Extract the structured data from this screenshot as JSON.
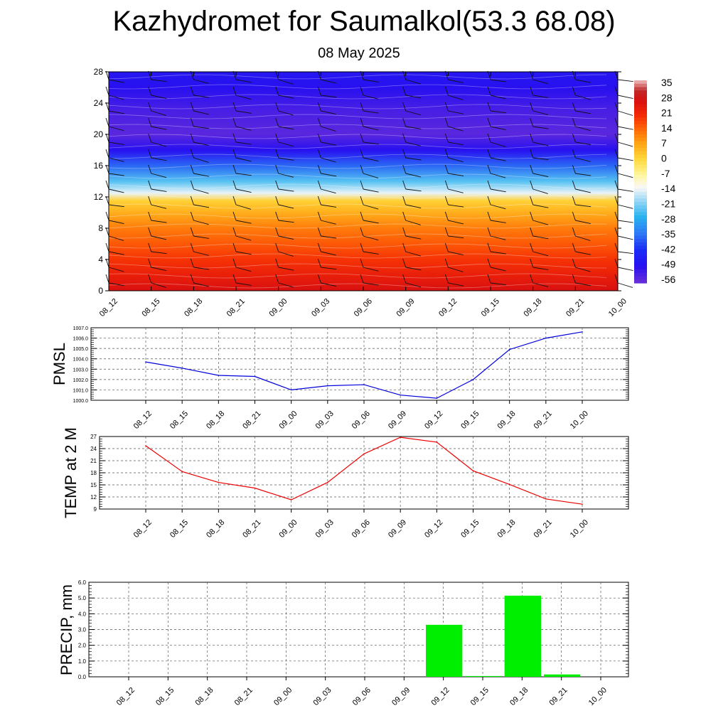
{
  "title": "Kazhydromet for Saumalkol(53.3 68.08)",
  "date": "08 May 2025",
  "time_labels": [
    "08_12",
    "08_15",
    "08_18",
    "08_21",
    "09_00",
    "09_03",
    "09_06",
    "09_09",
    "09_12",
    "09_15",
    "09_18",
    "09_21",
    "10_00"
  ],
  "colors": {
    "pmsl_line": "#0000dd",
    "temp_line": "#ee0000",
    "precip_bar": "#00ee00",
    "grid": "#555555"
  },
  "chart_data": [
    {
      "type": "heatmap",
      "name": "vertical-temperature-wind-section",
      "y_ticks": [
        0,
        4,
        8,
        12,
        16,
        20,
        24,
        28
      ],
      "ylim": [
        0,
        28
      ],
      "x": [
        "08_12",
        "08_15",
        "08_18",
        "08_21",
        "09_00",
        "09_03",
        "09_06",
        "09_09",
        "09_12",
        "09_15",
        "09_18",
        "09_21",
        "10_00"
      ],
      "colorbar_labels": [
        "35",
        "28",
        "21",
        "14",
        "7",
        "0",
        "-7",
        "-14",
        "-21",
        "-28",
        "-35",
        "-42",
        "-49",
        "-56"
      ],
      "colorbar_range": [
        -60,
        38
      ],
      "profile": [
        {
          "level": 0,
          "value": 28
        },
        {
          "level": 2,
          "value": 24
        },
        {
          "level": 4,
          "value": 20
        },
        {
          "level": 6,
          "value": 16
        },
        {
          "level": 8,
          "value": 12
        },
        {
          "level": 10,
          "value": 6
        },
        {
          "level": 11.5,
          "value": 1
        },
        {
          "level": 12.5,
          "value": -15
        },
        {
          "level": 14,
          "value": -25
        },
        {
          "level": 16,
          "value": -38
        },
        {
          "level": 18,
          "value": -52
        },
        {
          "level": 20,
          "value": -58
        },
        {
          "level": 23,
          "value": -56
        },
        {
          "level": 26,
          "value": -52
        },
        {
          "level": 28,
          "value": -50
        }
      ]
    },
    {
      "type": "line",
      "name": "PMSL",
      "ylabel": "PMSL",
      "x": [
        "08_12",
        "08_15",
        "08_18",
        "08_21",
        "09_00",
        "09_03",
        "09_06",
        "09_09",
        "09_12",
        "09_15",
        "09_18",
        "09_21",
        "10_00"
      ],
      "values": [
        1003.7,
        1003.1,
        1002.4,
        1002.3,
        1001.0,
        1001.4,
        1001.5,
        1000.5,
        1000.2,
        1002.0,
        1004.9,
        1006.0,
        1006.6
      ],
      "ylim": [
        1000.0,
        1007.0
      ],
      "y_ticks": [
        "1000.0",
        "1001.0",
        "1002.0",
        "1003.0",
        "1004.0",
        "1005.0",
        "1006.0",
        "1007.0"
      ]
    },
    {
      "type": "line",
      "name": "TEMP at 2 M",
      "ylabel": "TEMP at 2 M",
      "x": [
        "08_12",
        "08_15",
        "08_18",
        "08_21",
        "09_00",
        "09_03",
        "09_06",
        "09_09",
        "09_12",
        "09_15",
        "09_18",
        "09_21",
        "10_00"
      ],
      "values": [
        24.7,
        18.3,
        15.6,
        14.2,
        11.3,
        15.6,
        22.7,
        26.8,
        25.6,
        18.5,
        15.1,
        11.5,
        10.2
      ],
      "ylim": [
        9,
        27
      ],
      "y_ticks": [
        "9",
        "12",
        "15",
        "18",
        "21",
        "24",
        "27"
      ]
    },
    {
      "type": "bar",
      "name": "PRECIP, mm",
      "ylabel": "PRECIP, mm",
      "categories": [
        "08_12",
        "08_15",
        "08_18",
        "08_21",
        "09_00",
        "09_03",
        "09_06",
        "09_09",
        "09_12",
        "09_15",
        "09_18",
        "09_21",
        "10_00"
      ],
      "values": [
        0,
        0,
        0,
        0,
        0,
        0,
        0,
        0,
        3.3,
        0.05,
        5.15,
        0.15,
        0
      ],
      "ylim": [
        0,
        6.0
      ],
      "y_ticks": [
        "0.0",
        "1.0",
        "2.0",
        "3.0",
        "4.0",
        "5.0",
        "6.0"
      ]
    }
  ]
}
